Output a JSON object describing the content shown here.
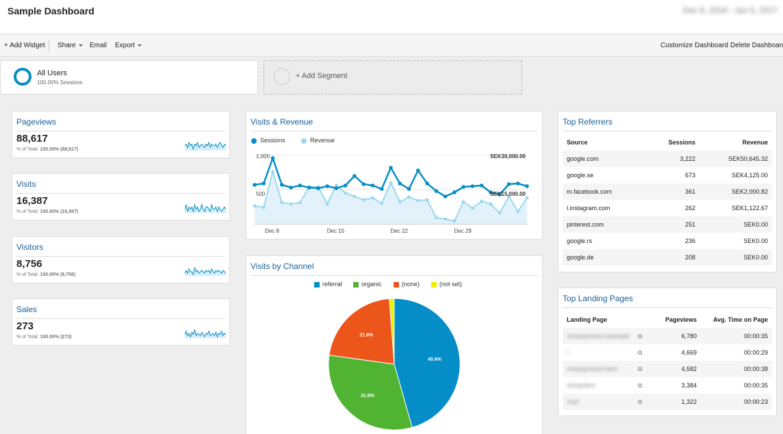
{
  "header": {
    "title": "Sample Dashboard",
    "date_range": "Dec 6, 2016 - Jan 5, 2017"
  },
  "toolbar": {
    "add_widget": "+ Add Widget",
    "share": "Share",
    "email": "Email",
    "export": "Export",
    "customize": "Customize Dashboard",
    "delete": "Delete Dashboard"
  },
  "segments": {
    "active": {
      "name": "All Users",
      "sub": "100.00% Sessions"
    },
    "add_label": "+ Add Segment"
  },
  "metrics": [
    {
      "title": "Pageviews",
      "value": "88,617",
      "pct_label": "% of Total:",
      "pct_value": "100.00% (88,617)",
      "spark": [
        5,
        6,
        4,
        7,
        5,
        6,
        3,
        6,
        5,
        7,
        4,
        5,
        6,
        5,
        4,
        6,
        5,
        7,
        4,
        6,
        5,
        5,
        6,
        4,
        6,
        7,
        5,
        4,
        6,
        5
      ]
    },
    {
      "title": "Visits",
      "value": "16,387",
      "pct_label": "% of Total:",
      "pct_value": "100.00% (16,387)",
      "spark": [
        5,
        7,
        4,
        6,
        5,
        6,
        4,
        7,
        5,
        6,
        4,
        5,
        7,
        5,
        4,
        6,
        6,
        5,
        4,
        7,
        5,
        5,
        6,
        4,
        6,
        5,
        4,
        5,
        6,
        5
      ]
    },
    {
      "title": "Visitors",
      "value": "8,756",
      "pct_label": "% of Total:",
      "pct_value": "100.00% (8,756)",
      "spark": [
        4,
        6,
        4,
        7,
        5,
        5,
        3,
        8,
        5,
        6,
        4,
        5,
        6,
        5,
        4,
        6,
        5,
        6,
        4,
        7,
        5,
        4,
        6,
        5,
        6,
        5,
        4,
        6,
        5,
        4
      ]
    },
    {
      "title": "Sales",
      "value": "273",
      "pct_label": "% of Total:",
      "pct_value": "100.00% (273)",
      "spark": [
        5,
        8,
        4,
        6,
        3,
        7,
        5,
        9,
        4,
        6,
        5,
        4,
        7,
        5,
        3,
        6,
        5,
        8,
        4,
        5,
        6,
        4,
        7,
        3,
        6,
        5,
        8,
        4,
        6,
        5
      ]
    }
  ],
  "visits_revenue": {
    "title": "Visits & Revenue",
    "legend": [
      "Sessions",
      "Revenue"
    ],
    "colors": {
      "sessions": "#058dc7",
      "revenue": "#9bd8f0"
    },
    "chart_data": {
      "type": "line",
      "x": [
        "Dec 6",
        "Dec 7",
        "Dec 8",
        "Dec 9",
        "Dec 10",
        "Dec 11",
        "Dec 12",
        "Dec 13",
        "Dec 14",
        "Dec 15",
        "Dec 16",
        "Dec 17",
        "Dec 18",
        "Dec 19",
        "Dec 20",
        "Dec 21",
        "Dec 22",
        "Dec 23",
        "Dec 24",
        "Dec 25",
        "Dec 26",
        "Dec 27",
        "Dec 28",
        "Dec 29",
        "Dec 30",
        "Dec 31",
        "Jan 1",
        "Jan 2",
        "Jan 3",
        "Jan 4",
        "Jan 5"
      ],
      "x_ticks": [
        "Dec 8",
        "Dec 15",
        "Dec 22",
        "Dec 29"
      ],
      "left_axis": {
        "ticks": [
          "1,000",
          "500"
        ],
        "range": [
          0,
          1000
        ]
      },
      "right_axis": {
        "ticks": [
          "SEK30,000.00",
          "SEK15,000.00"
        ],
        "range": [
          0,
          30000
        ]
      },
      "series": [
        {
          "name": "Sessions",
          "axis": "left",
          "values": [
            570,
            590,
            960,
            570,
            530,
            560,
            530,
            520,
            550,
            520,
            560,
            700,
            580,
            560,
            510,
            820,
            590,
            510,
            780,
            590,
            480,
            400,
            460,
            540,
            550,
            560,
            460,
            430,
            580,
            590,
            550
          ]
        },
        {
          "name": "Revenue",
          "axis": "left",
          "values": [
            260,
            240,
            760,
            310,
            290,
            310,
            540,
            540,
            290,
            560,
            450,
            400,
            350,
            380,
            300,
            600,
            320,
            390,
            340,
            350,
            90,
            70,
            40,
            320,
            230,
            330,
            290,
            160,
            400,
            180,
            380
          ]
        }
      ]
    }
  },
  "visits_channel": {
    "title": "Visits by Channel",
    "colors": [
      "#058dc7",
      "#50b432",
      "#ed561b",
      "#edef00"
    ],
    "chart_data": {
      "type": "pie",
      "labels": [
        "referral",
        "organic",
        "(none)",
        "(not set)"
      ],
      "values": [
        45.6,
        31.6,
        21.6,
        1.2
      ],
      "value_labels": [
        "45.6%",
        "31.6%",
        "21.6%",
        ""
      ]
    }
  },
  "top_referrers": {
    "title": "Top Referrers",
    "columns": [
      "Source",
      "Sessions",
      "Revenue"
    ],
    "rows": [
      {
        "source": "google.com",
        "sessions": "3,222",
        "revenue": "SEK50,645.32"
      },
      {
        "source": "google.se",
        "sessions": "673",
        "revenue": "SEK4,125.00"
      },
      {
        "source": "m.facebook.com",
        "sessions": "361",
        "revenue": "SEK2,000.82"
      },
      {
        "source": "l.instagram.com",
        "sessions": "262",
        "revenue": "SEK1,122.67"
      },
      {
        "source": "pinterest.com",
        "sessions": "251",
        "revenue": "SEK0.00"
      },
      {
        "source": "google.rs",
        "sessions": "236",
        "revenue": "SEK0.00"
      },
      {
        "source": "google.de",
        "sessions": "208",
        "revenue": "SEK0.00"
      }
    ]
  },
  "top_landing": {
    "title": "Top Landing Pages",
    "columns": [
      "Landing Page",
      "Pageviews",
      "Avg. Time on Page"
    ],
    "rows": [
      {
        "page": "/shop/product-example",
        "pageviews": "6,780",
        "time": "00:00:35"
      },
      {
        "page": "/",
        "pageviews": "4,669",
        "time": "00:00:29"
      },
      {
        "page": "/shop/product-item",
        "pageviews": "4,582",
        "time": "00:00:38"
      },
      {
        "page": "/shop/item",
        "pageviews": "3,384",
        "time": "00:00:35"
      },
      {
        "page": "/cart",
        "pageviews": "1,322",
        "time": "00:00:23"
      }
    ]
  }
}
